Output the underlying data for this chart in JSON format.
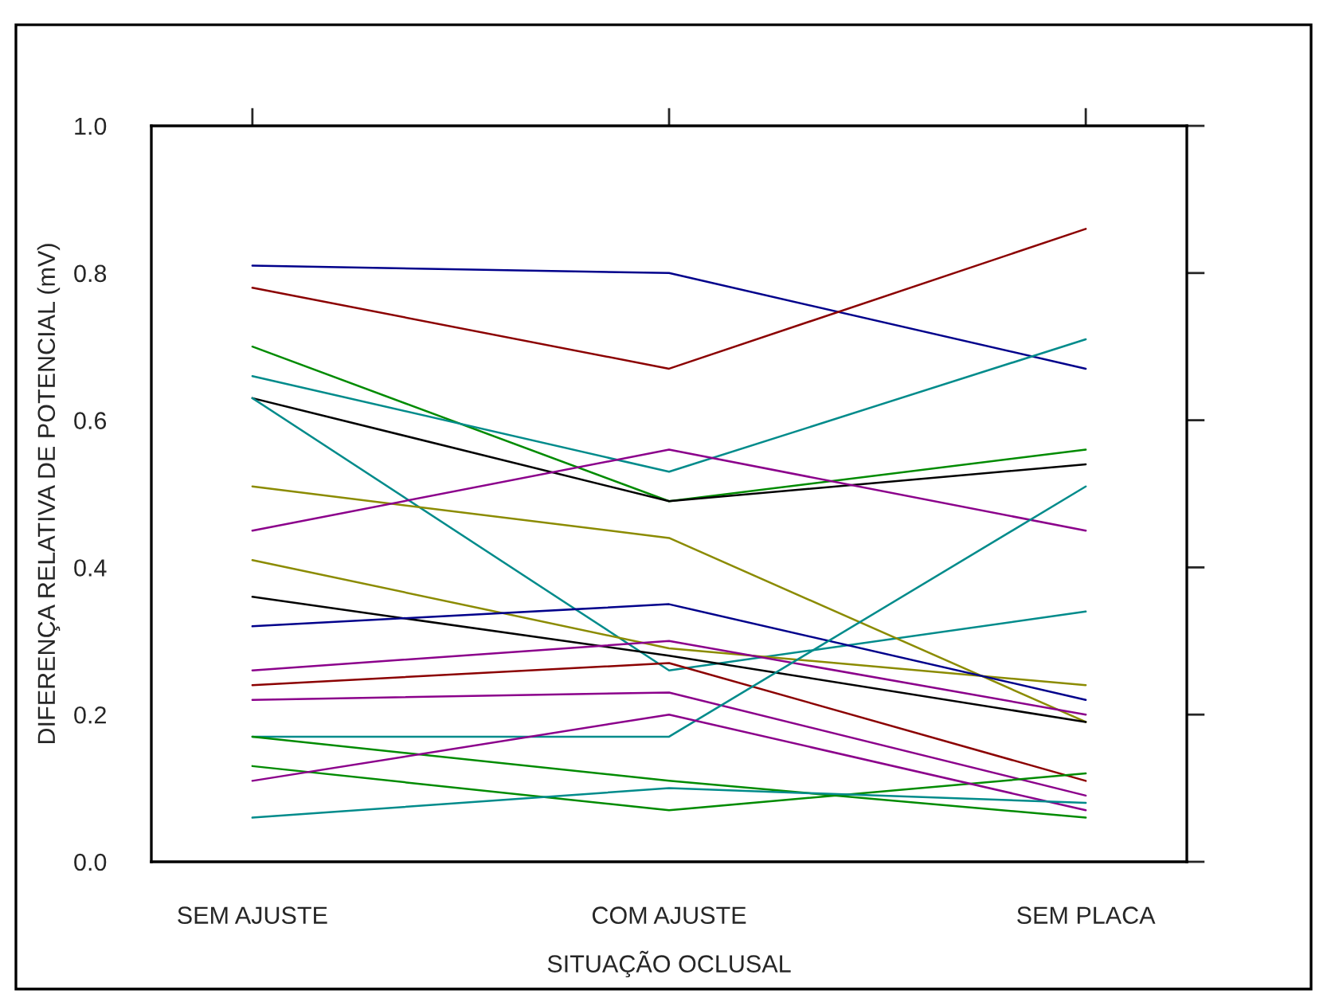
{
  "chart_data": {
    "type": "line",
    "xlabel": "SITUAÇÃO OCLUSAL",
    "ylabel": "DIFERENÇA RELATIVA DE POTENCIAL (mV)",
    "categories": [
      "SEM AJUSTE",
      "COM AJUSTE",
      "SEM PLACA"
    ],
    "ylim": [
      0,
      1.0
    ],
    "yticks": [
      {
        "value": 0,
        "label": "0.0"
      },
      0.2,
      0.4,
      0.6,
      0.8,
      {
        "value": 1.0,
        "label": "1.0"
      }
    ],
    "grid": false,
    "legend": false,
    "marker": "none",
    "line_style": "solid",
    "series": [
      {
        "color": "#00008b",
        "values": [
          0.81,
          0.8,
          0.67
        ]
      },
      {
        "color": "#8b0000",
        "values": [
          0.78,
          0.67,
          0.86
        ]
      },
      {
        "color": "#008b00",
        "values": [
          0.7,
          0.49,
          0.56
        ]
      },
      {
        "color": "#008b8b",
        "values": [
          0.66,
          0.53,
          0.71
        ]
      },
      {
        "color": "#000000",
        "values": [
          0.63,
          0.49,
          0.54
        ]
      },
      {
        "color": "#008b8b",
        "values": [
          0.63,
          0.26,
          0.34
        ]
      },
      {
        "color": "#8b8b00",
        "values": [
          0.51,
          0.44,
          0.19
        ]
      },
      {
        "color": "#8b008b",
        "values": [
          0.45,
          0.56,
          0.45
        ]
      },
      {
        "color": "#8b8b00",
        "values": [
          0.41,
          0.29,
          0.24
        ]
      },
      {
        "color": "#000000",
        "values": [
          0.36,
          0.28,
          0.19
        ]
      },
      {
        "color": "#00008b",
        "values": [
          0.32,
          0.35,
          0.22
        ]
      },
      {
        "color": "#8b008b",
        "values": [
          0.26,
          0.3,
          0.2
        ]
      },
      {
        "color": "#8b0000",
        "values": [
          0.24,
          0.27,
          0.11
        ]
      },
      {
        "color": "#8b008b",
        "values": [
          0.22,
          0.23,
          0.09
        ]
      },
      {
        "color": "#008b8b",
        "values": [
          0.17,
          0.17,
          0.51
        ]
      },
      {
        "color": "#008b00",
        "values": [
          0.17,
          0.11,
          0.06
        ]
      },
      {
        "color": "#008b00",
        "values": [
          0.13,
          0.07,
          0.12
        ]
      },
      {
        "color": "#8b008b",
        "values": [
          0.11,
          0.2,
          0.07
        ]
      },
      {
        "color": "#008b8b",
        "values": [
          0.06,
          0.1,
          0.08
        ]
      }
    ]
  }
}
